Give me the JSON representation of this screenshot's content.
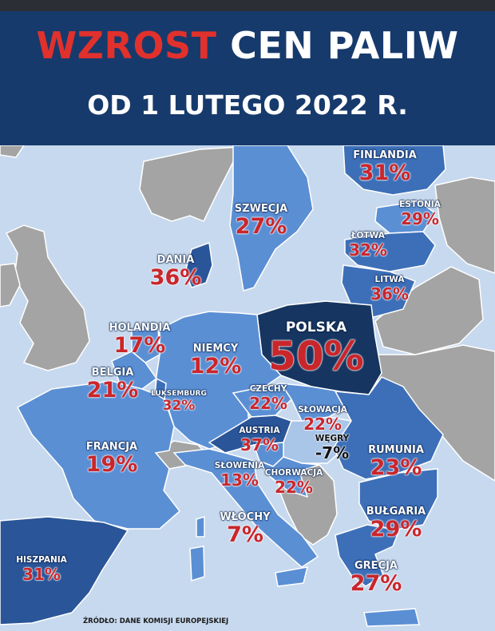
{
  "header": {
    "title_accent": "WZROST",
    "title_rest": "CEN PALIW",
    "subtitle": "OD 1 LUTEGO 2022 R."
  },
  "colors": {
    "title_accent": "#e0312c",
    "header_bg": "#173a6c",
    "sea": "#c7d9ee",
    "non_eu_land": "#a4a4a4",
    "light_blue": "#5b8fd4",
    "mid_blue": "#3d6fb8",
    "dark_blue": "#2a5598",
    "poland": "#163560",
    "percentage_text": "#c9262b"
  },
  "countries": [
    {
      "id": "finlandia",
      "name": "FINLANDIA",
      "value": "31%"
    },
    {
      "id": "estonia",
      "name": "ESTONIA",
      "value": "29%"
    },
    {
      "id": "szwecja",
      "name": "SZWECJA",
      "value": "27%"
    },
    {
      "id": "lotwa",
      "name": "ŁOTWA",
      "value": "32%"
    },
    {
      "id": "dania",
      "name": "DANIA",
      "value": "36%"
    },
    {
      "id": "litwa",
      "name": "LITWA",
      "value": "36%"
    },
    {
      "id": "holandia",
      "name": "HOLANDIA",
      "value": "17%"
    },
    {
      "id": "polska",
      "name": "POLSKA",
      "value": "50%"
    },
    {
      "id": "niemcy",
      "name": "NIEMCY",
      "value": "12%"
    },
    {
      "id": "belgia",
      "name": "BELGIA",
      "value": "21%"
    },
    {
      "id": "luksemburg",
      "name": "LUKSEMBURG",
      "value": "32%"
    },
    {
      "id": "czechy",
      "name": "CZECHY",
      "value": "22%"
    },
    {
      "id": "slowacja",
      "name": "SŁOWACJA",
      "value": "22%"
    },
    {
      "id": "austria",
      "name": "AUSTRIA",
      "value": "37%"
    },
    {
      "id": "wegry",
      "name": "WĘGRY",
      "value": "-7%"
    },
    {
      "id": "rumunia",
      "name": "RUMUNIA",
      "value": "23%"
    },
    {
      "id": "francja",
      "name": "FRANCJA",
      "value": "19%"
    },
    {
      "id": "slowenia",
      "name": "SŁOWENIA",
      "value": "13%"
    },
    {
      "id": "chorwacja",
      "name": "CHORWACJA",
      "value": "22%"
    },
    {
      "id": "bulgaria",
      "name": "BUŁGARIA",
      "value": "29%"
    },
    {
      "id": "wlochy",
      "name": "WŁOCHY",
      "value": "7%"
    },
    {
      "id": "hiszpania",
      "name": "HISZPANIA",
      "value": "31%"
    },
    {
      "id": "grecja",
      "name": "GRECJA",
      "value": "27%"
    }
  ],
  "source": "ŹRÓDŁO: DANE KOMISJI EUROPEJSKIEJ"
}
